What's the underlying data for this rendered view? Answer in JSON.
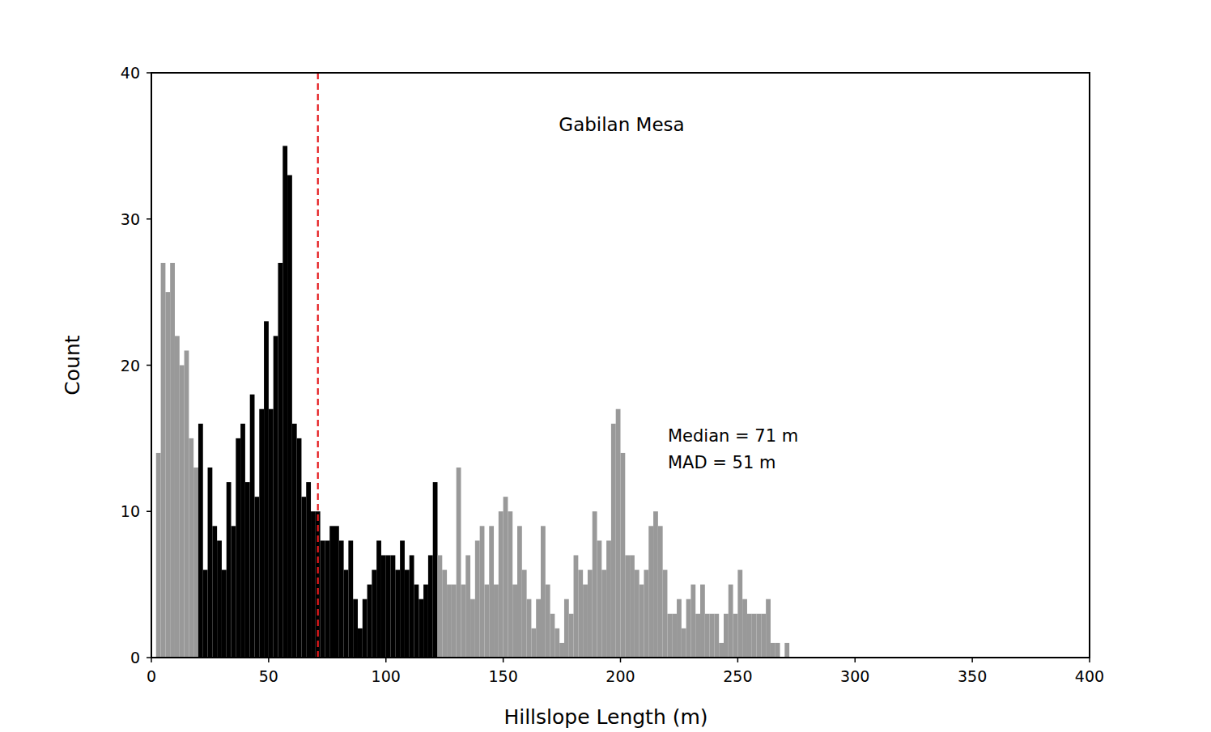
{
  "chart_data": {
    "type": "histogram",
    "title": "Gabilan Mesa",
    "x_label": "Hillslope Length (m)",
    "y_label": "Count",
    "bins": [
      2,
      4,
      6,
      8,
      10,
      12,
      14,
      16,
      18,
      20,
      22,
      24,
      26,
      28,
      30,
      32,
      34,
      36,
      38,
      40,
      42,
      44,
      46,
      48,
      50,
      52,
      54,
      56,
      58,
      60,
      62,
      64,
      66,
      68,
      70,
      72,
      74,
      76,
      78,
      80,
      82,
      84,
      86,
      88,
      90,
      92,
      94,
      96,
      98,
      100,
      102,
      104,
      106,
      108,
      110,
      112,
      114,
      116,
      118,
      120,
      122,
      124,
      126,
      128,
      130,
      132,
      134,
      136,
      138,
      140,
      142,
      144,
      146,
      148,
      150,
      152,
      154,
      156,
      158,
      160,
      162,
      164,
      166,
      168,
      170,
      172,
      174,
      176,
      178,
      180,
      182,
      184,
      186,
      188,
      190,
      192,
      194,
      196,
      198,
      200,
      202,
      204,
      206,
      208,
      210,
      212,
      214,
      216,
      218,
      220,
      222,
      224,
      226,
      228,
      230,
      232,
      234,
      236,
      238,
      240,
      242,
      244,
      246,
      248,
      250,
      252,
      254,
      256,
      258,
      260,
      262,
      264,
      266,
      268,
      270,
      272
    ],
    "values": [
      14,
      27,
      25,
      27,
      22,
      20,
      21,
      15,
      13,
      16,
      6,
      13,
      9,
      8,
      6,
      12,
      9,
      15,
      16,
      12,
      18,
      11,
      17,
      23,
      17,
      22,
      27,
      35,
      33,
      16,
      15,
      11,
      12,
      10,
      10,
      8,
      8,
      9,
      9,
      8,
      6,
      8,
      4,
      2,
      4,
      5,
      6,
      8,
      7,
      7,
      7,
      6,
      8,
      6,
      7,
      5,
      4,
      5,
      7,
      12,
      7,
      6,
      5,
      5,
      13,
      5,
      7,
      4,
      8,
      9,
      5,
      9,
      5,
      10,
      11,
      10,
      5,
      9,
      6,
      4,
      2,
      4,
      9,
      5,
      3,
      2,
      1,
      4,
      3,
      7,
      6,
      5,
      6,
      10,
      8,
      6,
      8,
      16,
      17,
      14,
      7,
      7,
      6,
      5,
      6,
      9,
      10,
      9,
      6,
      3,
      3,
      4,
      2,
      4,
      5,
      3,
      5,
      3,
      3,
      3,
      1,
      3,
      5,
      3,
      6,
      4,
      3,
      3,
      3,
      3,
      4,
      1,
      1,
      0,
      1
    ],
    "colors": [
      "#999",
      "#999",
      "#999",
      "#999",
      "#999",
      "#999",
      "#999",
      "#999",
      "#999",
      "#000",
      "#000",
      "#000",
      "#000",
      "#000",
      "#000",
      "#000",
      "#000",
      "#000",
      "#000",
      "#000",
      "#000",
      "#000",
      "#000",
      "#000",
      "#000",
      "#000",
      "#000",
      "#000",
      "#000",
      "#000",
      "#000",
      "#000",
      "#000",
      "#000",
      "#000",
      "#000",
      "#000",
      "#000",
      "#000",
      "#000",
      "#000",
      "#000",
      "#000",
      "#000",
      "#000",
      "#000",
      "#000",
      "#000",
      "#000",
      "#000",
      "#000",
      "#000",
      "#000",
      "#000",
      "#000",
      "#000",
      "#000",
      "#000",
      "#000",
      "#000",
      "#999",
      "#999",
      "#999",
      "#999",
      "#999",
      "#999",
      "#999",
      "#999",
      "#999",
      "#999",
      "#999",
      "#999",
      "#999",
      "#999",
      "#999",
      "#999",
      "#999",
      "#999",
      "#999",
      "#999",
      "#999",
      "#999",
      "#999",
      "#999",
      "#999",
      "#999",
      "#999",
      "#999",
      "#999",
      "#999",
      "#999",
      "#999",
      "#999",
      "#999",
      "#999",
      "#999",
      "#999",
      "#999",
      "#999",
      "#999",
      "#999",
      "#999",
      "#999",
      "#999",
      "#999",
      "#999",
      "#999",
      "#999",
      "#999",
      "#999",
      "#999",
      "#999",
      "#999",
      "#999",
      "#999",
      "#999",
      "#999",
      "#999",
      "#999",
      "#999",
      "#999",
      "#999",
      "#999",
      "#999",
      "#999",
      "#999",
      "#999",
      "#999",
      "#999",
      "#999",
      "#999",
      "#999",
      "#999",
      "#999",
      "#999"
    ],
    "vline": {
      "value": 71,
      "color": "#e41a1c",
      "line_style": "dashed"
    },
    "annotations": [
      "Median = 71 m",
      "MAD = 51 m"
    ],
    "xlim": [
      0,
      400
    ],
    "xticks": [
      0,
      50,
      100,
      150,
      200,
      250,
      300,
      350,
      400
    ],
    "ylim": [
      0,
      40
    ],
    "yticks": [
      0,
      10,
      20,
      30,
      40
    ],
    "grid": false
  }
}
